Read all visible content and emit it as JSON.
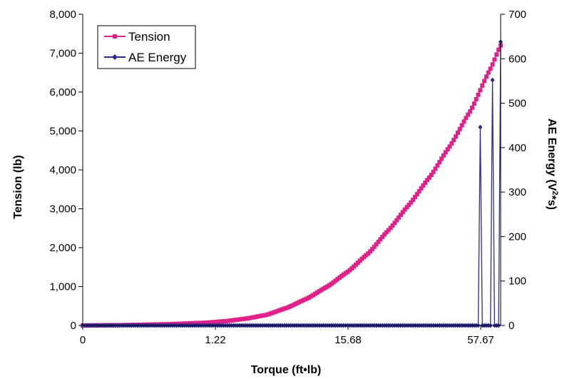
{
  "chart_data": {
    "type": "line",
    "xlabel": "Torque (ft•lb)",
    "ylabel": "Tension (lb)",
    "y2label_main": "AE Energy (V",
    "y2label_sup": "2",
    "y2label_end": "*s)",
    "x_ticks": [
      "0",
      "1.22",
      "15.68",
      "57.67"
    ],
    "y_ticks": [
      "0",
      "1,000",
      "2,000",
      "3,000",
      "4,000",
      "5,000",
      "6,000",
      "7,000",
      "8,000"
    ],
    "y2_ticks": [
      "0",
      "100",
      "200",
      "300",
      "400",
      "500",
      "600",
      "700"
    ],
    "ylim": [
      0,
      8000
    ],
    "y2lim": [
      0,
      700
    ],
    "x_scale": "nonlinear (sample index)",
    "sample_count": 206,
    "legend_position": "top-left",
    "series": [
      {
        "name": "Tension",
        "axis": "left",
        "color": "#e0218a",
        "marker": "square",
        "shape_keypoints": [
          [
            0,
            0
          ],
          [
            20,
            10
          ],
          [
            40,
            30
          ],
          [
            60,
            70
          ],
          [
            70,
            110
          ],
          [
            80,
            175
          ],
          [
            90,
            270
          ],
          [
            100,
            450
          ],
          [
            110,
            690
          ],
          [
            120,
            1000
          ],
          [
            130,
            1380
          ],
          [
            140,
            1850
          ],
          [
            150,
            2450
          ],
          [
            160,
            3100
          ],
          [
            170,
            3800
          ],
          [
            180,
            4600
          ],
          [
            190,
            5500
          ],
          [
            200,
            6600
          ],
          [
            205,
            7200
          ]
        ]
      },
      {
        "name": "AE Energy",
        "axis": "right",
        "color": "#2b2a8f",
        "marker": "diamond",
        "baseline": 0,
        "spikes": [
          {
            "index": 195,
            "value": 446
          },
          {
            "index": 201,
            "value": 552
          },
          {
            "index": 205,
            "value": 638
          }
        ]
      }
    ]
  }
}
